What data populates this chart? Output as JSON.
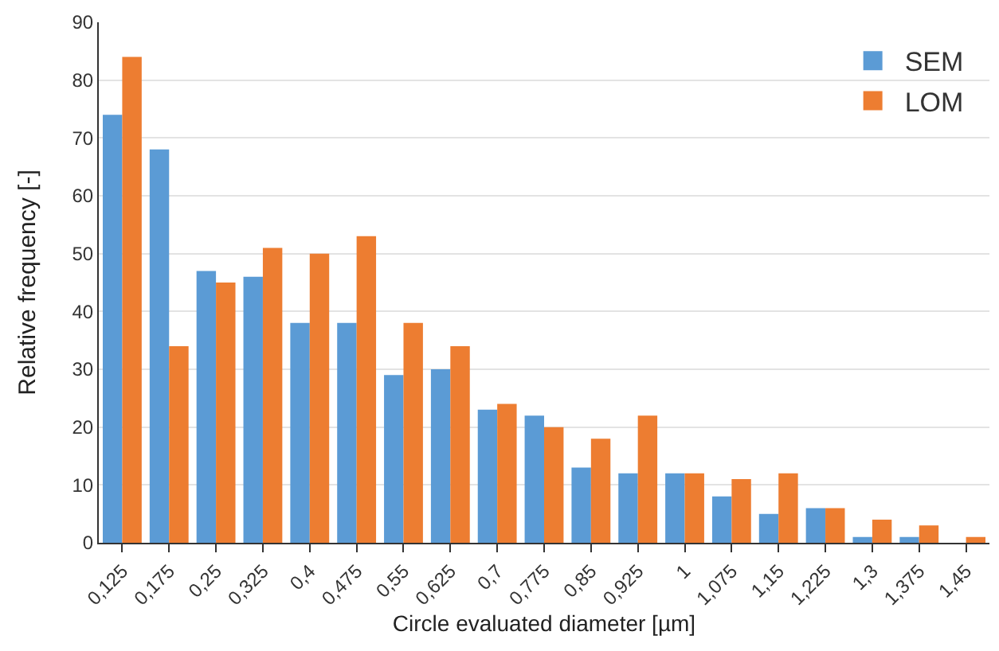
{
  "chart_data": {
    "type": "bar",
    "xlabel": "Circle evaluated diameter [µm]",
    "ylabel": "Relative frequency [-]",
    "categories": [
      "0,125",
      "0,175",
      "0,25",
      "0,325",
      "0,4",
      "0,475",
      "0,55",
      "0,625",
      "0,7",
      "0,775",
      "0,85",
      "0,925",
      "1",
      "1,075",
      "1,15",
      "1,225",
      "1,3",
      "1,375",
      "1,45"
    ],
    "series": [
      {
        "name": "SEM",
        "color": "#5b9bd5",
        "values": [
          74,
          68,
          47,
          46,
          38,
          38,
          29,
          30,
          23,
          22,
          13,
          12,
          12,
          8,
          5,
          6,
          1,
          1,
          0
        ]
      },
      {
        "name": "LOM",
        "color": "#ed7d31",
        "values": [
          84,
          34,
          45,
          51,
          50,
          53,
          38,
          34,
          24,
          20,
          18,
          22,
          12,
          11,
          12,
          6,
          4,
          3,
          1
        ]
      }
    ],
    "ylim": [
      0,
      90
    ],
    "yticks": [
      0,
      10,
      20,
      30,
      40,
      50,
      60,
      70,
      80,
      90
    ],
    "grid": "y",
    "legend": "top right"
  }
}
